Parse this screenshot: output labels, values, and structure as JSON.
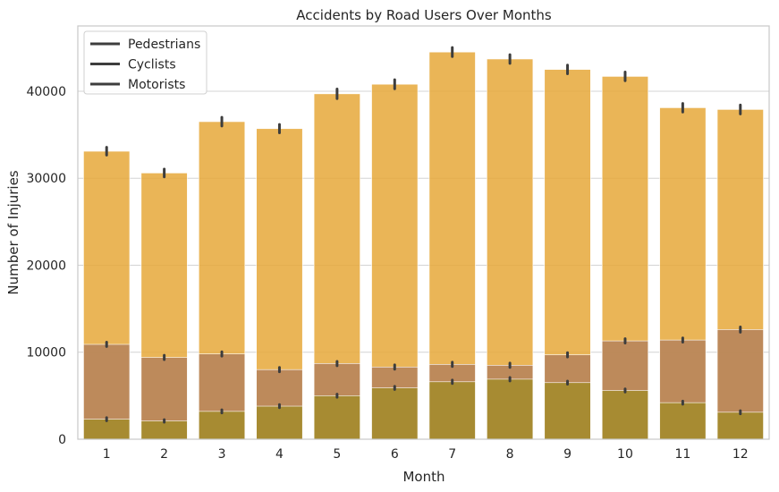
{
  "chart_data": {
    "type": "bar",
    "title": "Accidents by Road Users Over Months",
    "xlabel": "Month",
    "ylabel": "Number of Injuries",
    "categories": [
      "1",
      "2",
      "3",
      "4",
      "5",
      "6",
      "7",
      "8",
      "9",
      "10",
      "11",
      "12"
    ],
    "ylim": [
      0,
      47500
    ],
    "yticks": [
      0,
      10000,
      20000,
      30000,
      40000
    ],
    "ytick_labels": [
      "0",
      "10000",
      "20000",
      "30000",
      "40000"
    ],
    "grid": true,
    "legend_position": "top-left",
    "series": [
      {
        "name": "Motorists",
        "color": "#e6a83a",
        "values": [
          33100,
          30600,
          36500,
          35700,
          39700,
          40800,
          44500,
          43700,
          42500,
          41700,
          38100,
          37900
        ],
        "error": [
          450,
          450,
          500,
          480,
          550,
          520,
          520,
          500,
          500,
          500,
          500,
          520
        ]
      },
      {
        "name": "Cyclists",
        "color": "#b5835c",
        "values": [
          10900,
          9400,
          9800,
          8000,
          8700,
          8300,
          8600,
          8500,
          9700,
          11300,
          11400,
          12600
        ],
        "error": [
          250,
          250,
          250,
          250,
          250,
          250,
          250,
          250,
          250,
          250,
          250,
          300
        ]
      },
      {
        "name": "Pedestrians",
        "color": "#a38b2c",
        "values": [
          2300,
          2100,
          3200,
          3800,
          5000,
          5900,
          6600,
          6900,
          6500,
          5600,
          4200,
          3100
        ],
        "error": [
          180,
          150,
          180,
          180,
          180,
          180,
          200,
          200,
          180,
          180,
          180,
          180
        ]
      }
    ],
    "legend": [
      "Pedestrians",
      "Cyclists",
      "Motorists"
    ]
  }
}
